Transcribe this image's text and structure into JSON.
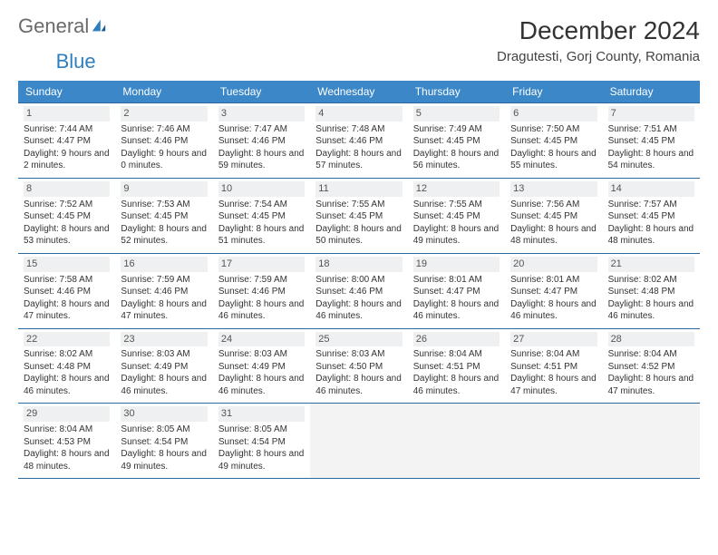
{
  "logo": {
    "word1": "General",
    "word2": "Blue"
  },
  "title": "December 2024",
  "subtitle": "Dragutesti, Gorj County, Romania",
  "colors": {
    "header_bg": "#3b87c8",
    "header_text": "#ffffff",
    "border": "#2a6aa0",
    "logo_gray": "#6a6a6a",
    "logo_blue": "#2f7fbf",
    "text": "#333333",
    "daynum_bg": "#eef0f1",
    "empty_bg": "#f3f3f3"
  },
  "weekdays": [
    "Sunday",
    "Monday",
    "Tuesday",
    "Wednesday",
    "Thursday",
    "Friday",
    "Saturday"
  ],
  "cells": [
    {
      "day": 1,
      "sunrise": "7:44 AM",
      "sunset": "4:47 PM",
      "daylight": "9 hours and 2 minutes."
    },
    {
      "day": 2,
      "sunrise": "7:46 AM",
      "sunset": "4:46 PM",
      "daylight": "9 hours and 0 minutes."
    },
    {
      "day": 3,
      "sunrise": "7:47 AM",
      "sunset": "4:46 PM",
      "daylight": "8 hours and 59 minutes."
    },
    {
      "day": 4,
      "sunrise": "7:48 AM",
      "sunset": "4:46 PM",
      "daylight": "8 hours and 57 minutes."
    },
    {
      "day": 5,
      "sunrise": "7:49 AM",
      "sunset": "4:45 PM",
      "daylight": "8 hours and 56 minutes."
    },
    {
      "day": 6,
      "sunrise": "7:50 AM",
      "sunset": "4:45 PM",
      "daylight": "8 hours and 55 minutes."
    },
    {
      "day": 7,
      "sunrise": "7:51 AM",
      "sunset": "4:45 PM",
      "daylight": "8 hours and 54 minutes."
    },
    {
      "day": 8,
      "sunrise": "7:52 AM",
      "sunset": "4:45 PM",
      "daylight": "8 hours and 53 minutes."
    },
    {
      "day": 9,
      "sunrise": "7:53 AM",
      "sunset": "4:45 PM",
      "daylight": "8 hours and 52 minutes."
    },
    {
      "day": 10,
      "sunrise": "7:54 AM",
      "sunset": "4:45 PM",
      "daylight": "8 hours and 51 minutes."
    },
    {
      "day": 11,
      "sunrise": "7:55 AM",
      "sunset": "4:45 PM",
      "daylight": "8 hours and 50 minutes."
    },
    {
      "day": 12,
      "sunrise": "7:55 AM",
      "sunset": "4:45 PM",
      "daylight": "8 hours and 49 minutes."
    },
    {
      "day": 13,
      "sunrise": "7:56 AM",
      "sunset": "4:45 PM",
      "daylight": "8 hours and 48 minutes."
    },
    {
      "day": 14,
      "sunrise": "7:57 AM",
      "sunset": "4:45 PM",
      "daylight": "8 hours and 48 minutes."
    },
    {
      "day": 15,
      "sunrise": "7:58 AM",
      "sunset": "4:46 PM",
      "daylight": "8 hours and 47 minutes."
    },
    {
      "day": 16,
      "sunrise": "7:59 AM",
      "sunset": "4:46 PM",
      "daylight": "8 hours and 47 minutes."
    },
    {
      "day": 17,
      "sunrise": "7:59 AM",
      "sunset": "4:46 PM",
      "daylight": "8 hours and 46 minutes."
    },
    {
      "day": 18,
      "sunrise": "8:00 AM",
      "sunset": "4:46 PM",
      "daylight": "8 hours and 46 minutes."
    },
    {
      "day": 19,
      "sunrise": "8:01 AM",
      "sunset": "4:47 PM",
      "daylight": "8 hours and 46 minutes."
    },
    {
      "day": 20,
      "sunrise": "8:01 AM",
      "sunset": "4:47 PM",
      "daylight": "8 hours and 46 minutes."
    },
    {
      "day": 21,
      "sunrise": "8:02 AM",
      "sunset": "4:48 PM",
      "daylight": "8 hours and 46 minutes."
    },
    {
      "day": 22,
      "sunrise": "8:02 AM",
      "sunset": "4:48 PM",
      "daylight": "8 hours and 46 minutes."
    },
    {
      "day": 23,
      "sunrise": "8:03 AM",
      "sunset": "4:49 PM",
      "daylight": "8 hours and 46 minutes."
    },
    {
      "day": 24,
      "sunrise": "8:03 AM",
      "sunset": "4:49 PM",
      "daylight": "8 hours and 46 minutes."
    },
    {
      "day": 25,
      "sunrise": "8:03 AM",
      "sunset": "4:50 PM",
      "daylight": "8 hours and 46 minutes."
    },
    {
      "day": 26,
      "sunrise": "8:04 AM",
      "sunset": "4:51 PM",
      "daylight": "8 hours and 46 minutes."
    },
    {
      "day": 27,
      "sunrise": "8:04 AM",
      "sunset": "4:51 PM",
      "daylight": "8 hours and 47 minutes."
    },
    {
      "day": 28,
      "sunrise": "8:04 AM",
      "sunset": "4:52 PM",
      "daylight": "8 hours and 47 minutes."
    },
    {
      "day": 29,
      "sunrise": "8:04 AM",
      "sunset": "4:53 PM",
      "daylight": "8 hours and 48 minutes."
    },
    {
      "day": 30,
      "sunrise": "8:05 AM",
      "sunset": "4:54 PM",
      "daylight": "8 hours and 49 minutes."
    },
    {
      "day": 31,
      "sunrise": "8:05 AM",
      "sunset": "4:54 PM",
      "daylight": "8 hours and 49 minutes."
    },
    {
      "empty": true
    },
    {
      "empty": true
    },
    {
      "empty": true
    },
    {
      "empty": true
    }
  ]
}
